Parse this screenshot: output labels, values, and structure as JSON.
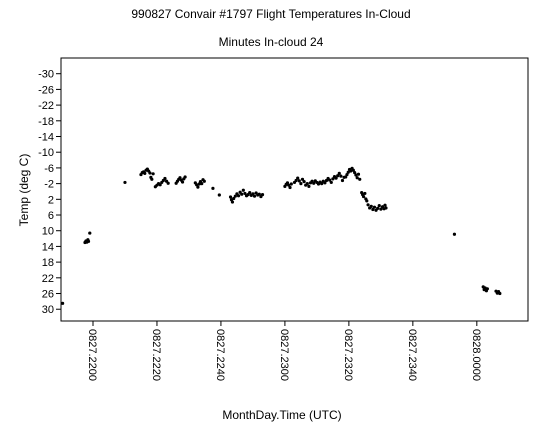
{
  "chart_data": {
    "type": "scatter",
    "title": "990827 Convair #1797 Flight Temperatures In-Cloud",
    "subtitle": "Minutes In-cloud 24",
    "xlabel": "MonthDay.Time (UTC)",
    "ylabel": "Temp (deg C)",
    "y_inverted": true,
    "ylim": [
      -34,
      33
    ],
    "xlim": [
      0,
      146
    ],
    "y_ticks": [
      -30,
      -26,
      -22,
      -18,
      -14,
      -10,
      -6,
      -2,
      2,
      6,
      10,
      14,
      18,
      22,
      26,
      30
    ],
    "y_tick_labels": [
      "-30",
      "-26",
      "-22",
      "-18",
      "-14",
      "-10",
      "-6",
      "-2",
      "2",
      "6",
      "10",
      "14",
      "18",
      "22",
      "26",
      "30"
    ],
    "x_ticks": [
      10,
      30,
      50,
      70,
      90,
      110,
      130
    ],
    "x_tick_labels": [
      "0827.2200",
      "0827.2220",
      "0827.2240",
      "0827.2300",
      "0827.2320",
      "0827.2340",
      "0828.0000"
    ],
    "grid": false,
    "legend": "none",
    "marker_color": "#000000",
    "series": [
      {
        "points": [
          [
            0.5,
            28.5
          ],
          [
            7.5,
            13.0
          ],
          [
            7.8,
            12.6
          ],
          [
            8.1,
            12.9
          ],
          [
            8.4,
            12.3
          ],
          [
            8.6,
            12.7
          ],
          [
            9.0,
            10.6
          ],
          [
            20.0,
            -2.3
          ],
          [
            25.0,
            -4.3
          ],
          [
            25.4,
            -4.8
          ],
          [
            25.8,
            -5.0
          ],
          [
            26.2,
            -4.6
          ],
          [
            26.6,
            -5.4
          ],
          [
            27.0,
            -5.7
          ],
          [
            27.4,
            -5.2
          ],
          [
            27.8,
            -4.7
          ],
          [
            28.1,
            -3.6
          ],
          [
            28.4,
            -3.1
          ],
          [
            28.8,
            -4.5
          ],
          [
            29.5,
            -1.2
          ],
          [
            30.0,
            -1.6
          ],
          [
            30.5,
            -2.0
          ],
          [
            31.0,
            -1.7
          ],
          [
            31.5,
            -2.3
          ],
          [
            32.0,
            -2.8
          ],
          [
            32.5,
            -3.3
          ],
          [
            33.0,
            -2.6
          ],
          [
            33.5,
            -2.1
          ],
          [
            36.0,
            -2.1
          ],
          [
            36.4,
            -2.6
          ],
          [
            36.8,
            -3.1
          ],
          [
            37.2,
            -3.5
          ],
          [
            37.6,
            -2.9
          ],
          [
            38.0,
            -2.4
          ],
          [
            38.4,
            -3.2
          ],
          [
            38.8,
            -3.7
          ],
          [
            42.0,
            -2.2
          ],
          [
            42.4,
            -1.7
          ],
          [
            42.8,
            -1.1
          ],
          [
            43.2,
            -1.9
          ],
          [
            43.6,
            -2.5
          ],
          [
            44.0,
            -2.0
          ],
          [
            44.4,
            -3.0
          ],
          [
            44.8,
            -2.6
          ],
          [
            47.5,
            -0.8
          ],
          [
            49.5,
            0.9
          ],
          [
            53.0,
            1.4
          ],
          [
            53.3,
            2.1
          ],
          [
            53.6,
            2.7
          ],
          [
            54.0,
            1.8
          ],
          [
            54.5,
            1.2
          ],
          [
            55.0,
            0.6
          ],
          [
            55.5,
            1.1
          ],
          [
            56.0,
            0.2
          ],
          [
            56.5,
            0.7
          ],
          [
            57.0,
            -0.3
          ],
          [
            57.5,
            0.5
          ],
          [
            58.0,
            1.1
          ],
          [
            58.5,
            0.8
          ],
          [
            59.0,
            0.3
          ],
          [
            59.5,
            1.0
          ],
          [
            60.0,
            0.6
          ],
          [
            60.5,
            1.2
          ],
          [
            61.0,
            0.4
          ],
          [
            61.5,
            0.9
          ],
          [
            62.0,
            0.7
          ],
          [
            62.5,
            1.3
          ],
          [
            63.0,
            0.8
          ],
          [
            70.0,
            -1.3
          ],
          [
            70.4,
            -1.8
          ],
          [
            70.8,
            -2.2
          ],
          [
            71.2,
            -1.6
          ],
          [
            71.6,
            -1.0
          ],
          [
            72.0,
            -1.9
          ],
          [
            73.0,
            -2.3
          ],
          [
            73.5,
            -2.8
          ],
          [
            74.0,
            -3.4
          ],
          [
            74.5,
            -2.7
          ],
          [
            75.0,
            -2.0
          ],
          [
            75.5,
            -3.1
          ],
          [
            76.0,
            -2.5
          ],
          [
            76.5,
            -1.6
          ],
          [
            77.0,
            -2.0
          ],
          [
            77.5,
            -1.3
          ],
          [
            78.0,
            -2.2
          ],
          [
            78.5,
            -2.6
          ],
          [
            79.0,
            -2.1
          ],
          [
            79.5,
            -2.7
          ],
          [
            80.0,
            -2.3
          ],
          [
            80.5,
            -1.9
          ],
          [
            81.0,
            -2.4
          ],
          [
            81.5,
            -2.0
          ],
          [
            82.0,
            -2.6
          ],
          [
            82.5,
            -2.2
          ],
          [
            83.0,
            -2.8
          ],
          [
            83.5,
            -3.3
          ],
          [
            84.0,
            -2.9
          ],
          [
            84.5,
            -2.3
          ],
          [
            85.0,
            -3.2
          ],
          [
            85.5,
            -3.8
          ],
          [
            86.0,
            -3.4
          ],
          [
            86.5,
            -4.0
          ],
          [
            87.0,
            -4.6
          ],
          [
            87.5,
            -3.9
          ],
          [
            88.0,
            -2.8
          ],
          [
            88.5,
            -3.6
          ],
          [
            89.0,
            -3.7
          ],
          [
            89.4,
            -4.3
          ],
          [
            89.8,
            -4.9
          ],
          [
            90.2,
            -5.6
          ],
          [
            90.6,
            -5.2
          ],
          [
            91.0,
            -5.9
          ],
          [
            91.4,
            -5.4
          ],
          [
            91.8,
            -4.8
          ],
          [
            92.2,
            -4.2
          ],
          [
            92.6,
            -3.5
          ],
          [
            93.0,
            -4.4
          ],
          [
            93.4,
            -3.1
          ],
          [
            94.0,
            0.3
          ],
          [
            94.3,
            0.8
          ],
          [
            94.6,
            1.3
          ],
          [
            95.0,
            0.5
          ],
          [
            95.3,
            1.9
          ],
          [
            95.6,
            2.4
          ],
          [
            96.0,
            3.4
          ],
          [
            96.5,
            4.2
          ],
          [
            97.0,
            3.8
          ],
          [
            97.5,
            4.6
          ],
          [
            98.0,
            4.0
          ],
          [
            98.5,
            4.8
          ],
          [
            99.0,
            4.3
          ],
          [
            99.5,
            3.6
          ],
          [
            100.0,
            4.5
          ],
          [
            100.5,
            3.9
          ],
          [
            101.0,
            4.4
          ],
          [
            101.3,
            3.5
          ],
          [
            101.6,
            4.2
          ],
          [
            123.0,
            10.9
          ],
          [
            132.0,
            24.3
          ],
          [
            132.3,
            25.0
          ],
          [
            132.6,
            24.6
          ],
          [
            133.0,
            25.3
          ],
          [
            133.3,
            24.8
          ],
          [
            136.0,
            25.4
          ],
          [
            136.4,
            25.9
          ],
          [
            136.8,
            25.5
          ],
          [
            137.2,
            26.0
          ]
        ]
      }
    ]
  }
}
